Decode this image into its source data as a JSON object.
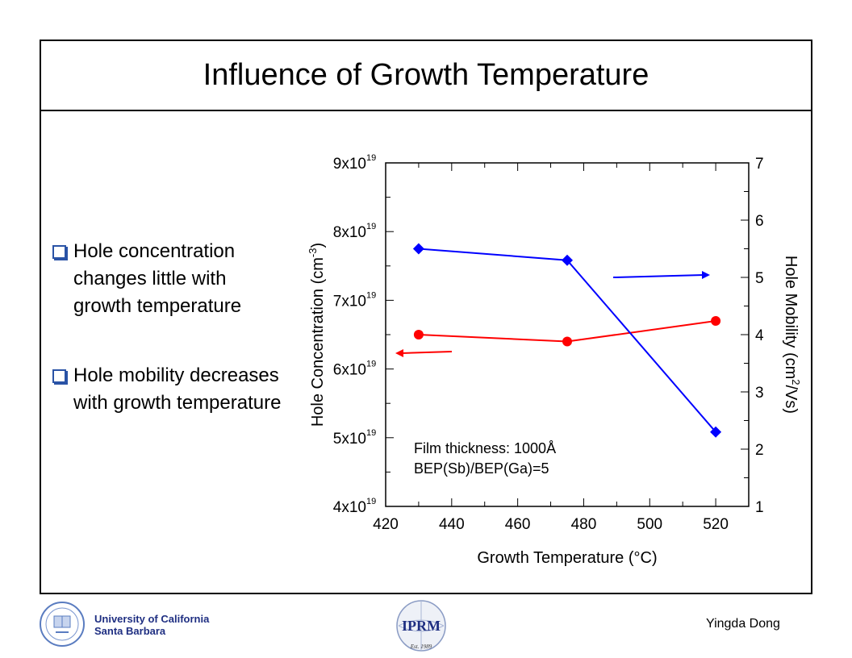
{
  "slide": {
    "title": "Influence of Growth Temperature",
    "bullets": [
      "Hole concentration changes little with growth temperature",
      "Hole mobility decreases with growth temperature"
    ]
  },
  "footer": {
    "university_line1": "University of California",
    "university_line2": "Santa Barbara",
    "author": "Yingda Dong",
    "logo_text": "IPRM",
    "logo_est": "Est. 1989"
  },
  "chart_data": {
    "type": "line",
    "xlabel": "Growth Temperature (°C)",
    "ylabel_left": "Hole Concentration (cm-3)",
    "ylabel_right": "Hole Mobility (cm2/Vs)",
    "xlim": [
      420,
      530
    ],
    "xticks": [
      "420",
      "440",
      "460",
      "480",
      "500",
      "520"
    ],
    "ylim_left": [
      4e+19,
      9e+19
    ],
    "yticks_left": [
      "4x10",
      "5x10",
      "6x10",
      "7x10",
      "8x10",
      "9x10"
    ],
    "yticks_left_exp": "19",
    "ylim_right": [
      1,
      7
    ],
    "yticks_right": [
      "1",
      "2",
      "3",
      "4",
      "5",
      "6",
      "7"
    ],
    "series": [
      {
        "axis": "left",
        "color": "#ff0000",
        "marker": "circle",
        "x": [
          430,
          475,
          520
        ],
        "values": [
          6.5e+19,
          6.4e+19,
          6.7e+19
        ]
      },
      {
        "axis": "right",
        "color": "#0000ff",
        "marker": "diamond",
        "x": [
          430,
          475,
          520
        ],
        "values": [
          5.5,
          5.3,
          2.3
        ]
      }
    ],
    "annotation": [
      "Film thickness: 1000Å",
      "BEP(Sb)/BEP(Ga)=5"
    ]
  }
}
